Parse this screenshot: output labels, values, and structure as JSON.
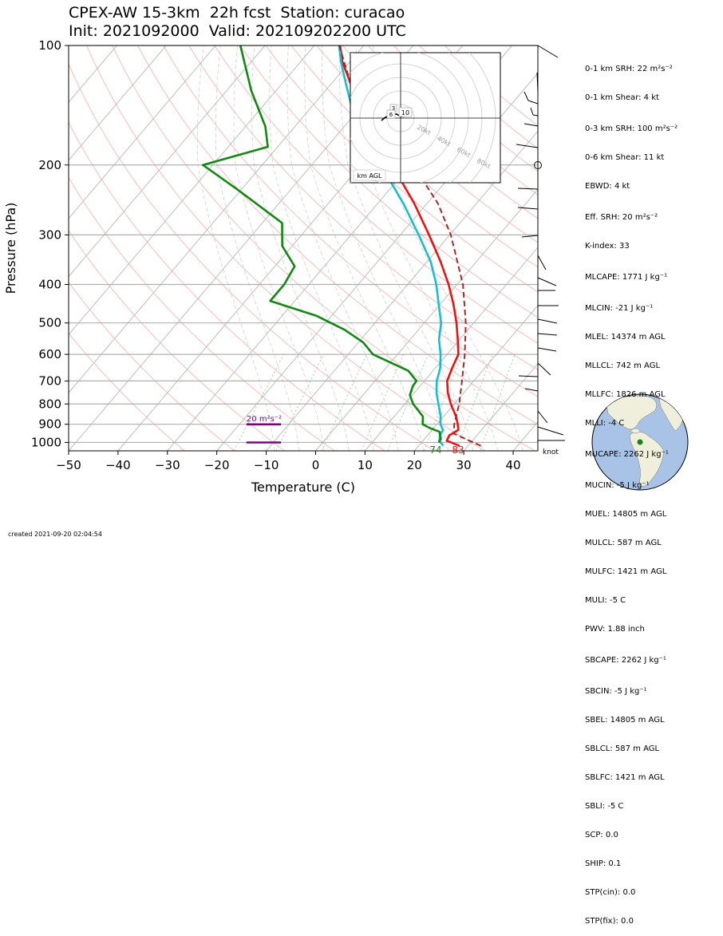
{
  "title_line1": "CPEX-AW 15-3km  22h fcst  Station: curacao",
  "title_line2": "Init: 2021092000  Valid: 202109202200 UTC",
  "footer": "created 2021-09-20 02:04:54",
  "hodograph": {
    "label": "km AGL",
    "ring_labels": [
      "20kt",
      "40kt",
      "60kt",
      "80kt"
    ],
    "height_labels": [
      "3",
      "6",
      "10"
    ]
  },
  "srh_box_label": "20 m²s⁻²",
  "surface_td_label": "74",
  "surface_t_label": "83",
  "barb_unit": "knot",
  "params": [
    "0-1 km SRH: 22 m²s⁻²",
    "0-1 km Shear: 4 kt",
    "0-3 km SRH: 100 m²s⁻²",
    "0-6 km Shear: 11 kt",
    "EBWD: 4 kt",
    "Eff. SRH: 20 m²s⁻²",
    "K-index: 33",
    "MLCAPE: 1771 J kg⁻¹",
    "MLCIN: -21 J kg⁻¹",
    "MLEL: 14374 m AGL",
    "MLLCL: 742 m AGL",
    "MLLFC: 1826 m AGL",
    "MLLI: -4 C",
    "MUCAPE: 2262 J kg⁻¹",
    "MUCIN: -5 J kg⁻¹",
    "MUEL: 14805 m AGL",
    "MULCL: 587 m AGL",
    "MULFC: 1421 m AGL",
    "MULI: -5 C",
    "PWV: 1.88 inch",
    "SBCAPE: 2262 J kg⁻¹",
    "SBCIN: -5 J kg⁻¹",
    "SBEL: 14805 m AGL",
    "SBLCL: 587 m AGL",
    "SBLFC: 1421 m AGL",
    "SBLI: -5 C",
    "SCP: 0.0",
    "SHIP: 0.1",
    "STP(cin): 0.0",
    "STP(fix): 0.0"
  ],
  "colors": {
    "temperature": "#ee1111",
    "dewpoint": "#118811",
    "virtual_temp": "#17becf",
    "parcel": "#a52a2a",
    "srh": "#800080",
    "isobar": "#b0b0b0",
    "dry_adiabat": "#f4b6b6",
    "moist_adiabat": "#cfcfcf",
    "mixing_ratio": "#9bd49b",
    "globe_ocean": "#a9c3e6",
    "globe_land": "#f0efdc"
  },
  "chart_data": {
    "type": "skew-t",
    "xlabel": "Temperature (C)",
    "ylabel": "Pressure (hPa)",
    "xlim": [
      -50,
      45
    ],
    "ylim": [
      1050,
      100
    ],
    "log_y": true,
    "x_ticks": [
      -50,
      -40,
      -30,
      -20,
      -10,
      0,
      10,
      20,
      30,
      40
    ],
    "y_ticks": [
      100,
      200,
      300,
      400,
      500,
      600,
      700,
      800,
      900,
      1000
    ],
    "series": [
      {
        "key": "temperature",
        "points": [
          [
            1020,
            28.3
          ],
          [
            990,
            24.8
          ],
          [
            960,
            24.4
          ],
          [
            930,
            25.3
          ],
          [
            900,
            24.2
          ],
          [
            860,
            22.5
          ],
          [
            800,
            19.3
          ],
          [
            750,
            16.8
          ],
          [
            700,
            14.6
          ],
          [
            650,
            13.4
          ],
          [
            600,
            12.3
          ],
          [
            550,
            9.6
          ],
          [
            500,
            6.5
          ],
          [
            450,
            2.8
          ],
          [
            400,
            -1.7
          ],
          [
            350,
            -7.3
          ],
          [
            300,
            -14.2
          ],
          [
            250,
            -22.6
          ],
          [
            200,
            -33.7
          ],
          [
            175,
            -40.0
          ],
          [
            150,
            -48.0
          ],
          [
            125,
            -56.0
          ],
          [
            110,
            -61.5
          ],
          [
            100,
            -64.8
          ]
        ]
      },
      {
        "key": "virtual_temp",
        "points": [
          [
            1020,
            25.0
          ],
          [
            990,
            23.3
          ],
          [
            960,
            22.5
          ],
          [
            930,
            22.2
          ],
          [
            900,
            20.7
          ],
          [
            860,
            19.4
          ],
          [
            800,
            16.8
          ],
          [
            750,
            14.5
          ],
          [
            700,
            12.5
          ],
          [
            650,
            11.0
          ],
          [
            600,
            8.7
          ],
          [
            550,
            5.8
          ],
          [
            500,
            3.4
          ],
          [
            450,
            -0.2
          ],
          [
            400,
            -4.2
          ],
          [
            350,
            -9.3
          ],
          [
            300,
            -16.3
          ],
          [
            250,
            -24.8
          ],
          [
            200,
            -36.0
          ],
          [
            175,
            -42.0
          ],
          [
            150,
            -50.0
          ],
          [
            125,
            -57.0
          ],
          [
            110,
            -61.8
          ],
          [
            100,
            -65.0
          ]
        ]
      },
      {
        "key": "dewpoint",
        "points": [
          [
            1000,
            23.5
          ],
          [
            980,
            23.3
          ],
          [
            940,
            21.8
          ],
          [
            920,
            19.2
          ],
          [
            900,
            17.1
          ],
          [
            860,
            15.8
          ],
          [
            800,
            11.7
          ],
          [
            760,
            9.5
          ],
          [
            720,
            8.5
          ],
          [
            700,
            8.4
          ],
          [
            660,
            5.0
          ],
          [
            600,
            -5.0
          ],
          [
            560,
            -9.0
          ],
          [
            520,
            -15.0
          ],
          [
            480,
            -23.0
          ],
          [
            440,
            -35.0
          ],
          [
            400,
            -35.0
          ],
          [
            360,
            -36.0
          ],
          [
            320,
            -42.0
          ],
          [
            280,
            -46.0
          ],
          [
            230,
            -61.0
          ],
          [
            200,
            -72.0
          ],
          [
            180,
            -62.0
          ],
          [
            160,
            -66.0
          ],
          [
            130,
            -75.0
          ],
          [
            100,
            -85.0
          ]
        ]
      },
      {
        "key": "parcel",
        "dashed": true,
        "points": [
          [
            1020,
            32.6
          ],
          [
            950,
            25.0
          ],
          [
            900,
            23.5
          ],
          [
            800,
            21.0
          ],
          [
            700,
            17.6
          ],
          [
            600,
            13.6
          ],
          [
            500,
            8.4
          ],
          [
            400,
            1.2
          ],
          [
            300,
            -9.8
          ],
          [
            250,
            -17.8
          ],
          [
            200,
            -29.5
          ],
          [
            150,
            -46.0
          ],
          [
            125,
            -56.0
          ],
          [
            100,
            -65.0
          ]
        ]
      }
    ],
    "srh_bars": [
      {
        "p": 900,
        "t0": -14,
        "t1": -7
      },
      {
        "p": 1000,
        "t0": -14,
        "t1": -7
      }
    ]
  }
}
